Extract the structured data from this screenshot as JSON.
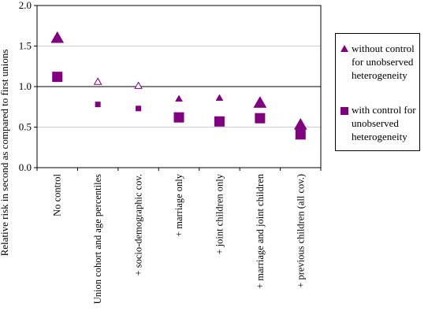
{
  "chart_data": {
    "type": "scatter",
    "title": "",
    "ylabel": "Relative risk in second as compared to first unions",
    "xlabel": "",
    "ylim": [
      0,
      2.0
    ],
    "yticks": [
      "0.0",
      "0.5",
      "1.0",
      "1.5",
      "2.0"
    ],
    "ytick_values": [
      0,
      0.5,
      1.0,
      1.5,
      2.0
    ],
    "reference_line": 1.0,
    "grid": true,
    "legend_position": "right",
    "categories": [
      "No control",
      "Union cohort and age percentiles",
      "+ socio-demographic cov.",
      "+ marriage only",
      "+ joint children only",
      "+ marriage and joint children",
      "+ previous children (all cov.)"
    ],
    "series": [
      {
        "name": "without control for unobserved heterogeneity",
        "marker": "triangle",
        "color": "#800080",
        "values": [
          1.6,
          1.06,
          1.01,
          0.85,
          0.86,
          0.8,
          0.53
        ],
        "marker_style": [
          "large",
          "small-hollow",
          "small-hollow",
          "small",
          "small",
          "large",
          "large"
        ]
      },
      {
        "name": "with control for unobserved heterogeneity",
        "marker": "square",
        "color": "#800080",
        "values": [
          1.12,
          0.78,
          0.73,
          0.62,
          0.57,
          0.61,
          0.41
        ],
        "marker_style": [
          "large",
          "small",
          "small",
          "large",
          "large",
          "large",
          "large"
        ]
      }
    ]
  },
  "legend": {
    "items": [
      {
        "label_lines": [
          "without control",
          "for unobserved",
          "heterogeneity"
        ]
      },
      {
        "label_lines": [
          "with control for",
          "unobserved",
          "heterogeneity"
        ]
      }
    ]
  }
}
